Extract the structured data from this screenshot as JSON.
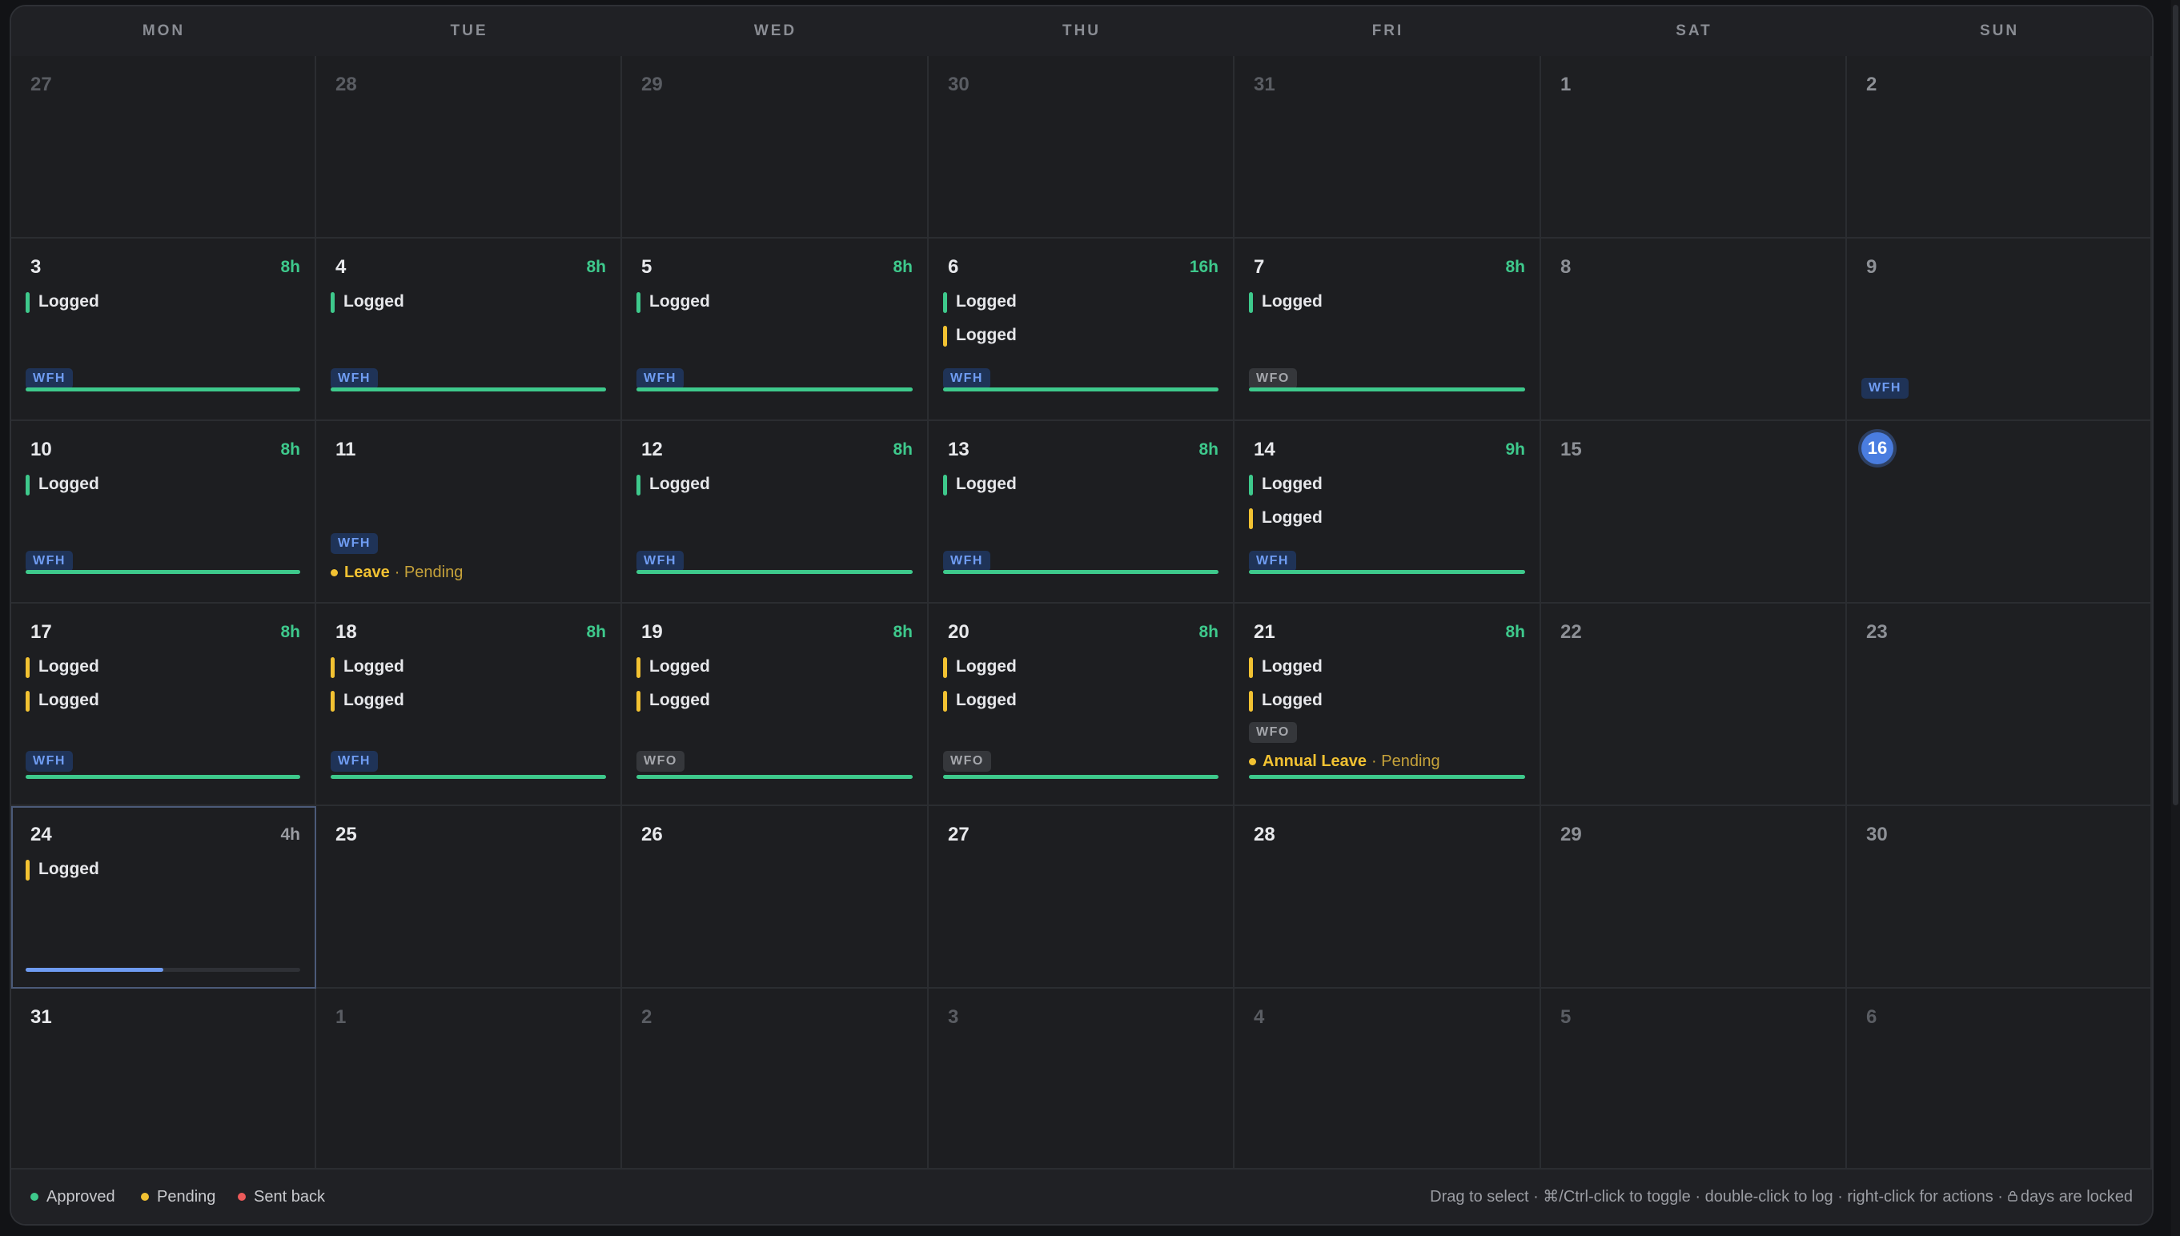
{
  "weekdays": [
    "MON",
    "TUE",
    "WED",
    "THU",
    "FRI",
    "SAT",
    "SUN"
  ],
  "colors": {
    "approved": "#3ec98c",
    "pending": "#f2c232",
    "sent_back": "#ec5a5a",
    "wfh": "#6f9cf2",
    "today": "#4a7de0"
  },
  "weeks": [
    [
      {
        "day": "27",
        "muted": true
      },
      {
        "day": "28",
        "muted": true
      },
      {
        "day": "29",
        "muted": true
      },
      {
        "day": "30",
        "muted": true
      },
      {
        "day": "31",
        "muted": true
      },
      {
        "day": "1",
        "weekend": true
      },
      {
        "day": "2",
        "weekend": true
      }
    ],
    [
      {
        "day": "3",
        "hours": "8h",
        "entries": [
          {
            "label": "Logged",
            "status": "approved"
          }
        ],
        "tag": "WFH",
        "progress": 1,
        "progress_color": "approved"
      },
      {
        "day": "4",
        "hours": "8h",
        "entries": [
          {
            "label": "Logged",
            "status": "approved"
          }
        ],
        "tag": "WFH",
        "progress": 1,
        "progress_color": "approved"
      },
      {
        "day": "5",
        "hours": "8h",
        "entries": [
          {
            "label": "Logged",
            "status": "approved"
          }
        ],
        "tag": "WFH",
        "progress": 1,
        "progress_color": "approved"
      },
      {
        "day": "6",
        "hours": "16h",
        "entries": [
          {
            "label": "Logged",
            "status": "approved"
          },
          {
            "label": "Logged",
            "status": "pending"
          }
        ],
        "tag": "WFH",
        "progress": 1,
        "progress_color": "approved"
      },
      {
        "day": "7",
        "hours": "8h",
        "entries": [
          {
            "label": "Logged",
            "status": "approved"
          }
        ],
        "tag": "WFO",
        "progress": 1,
        "progress_color": "approved"
      },
      {
        "day": "8",
        "weekend": true
      },
      {
        "day": "9",
        "weekend": true,
        "tag": "WFH",
        "tag_pos": "low"
      }
    ],
    [
      {
        "day": "10",
        "hours": "8h",
        "entries": [
          {
            "label": "Logged",
            "status": "approved"
          }
        ],
        "tag": "WFH",
        "progress": 1,
        "progress_color": "approved"
      },
      {
        "day": "11",
        "tag": "WFH",
        "tag_pos": "leave",
        "leave": {
          "type": "Leave",
          "status": "· Pending"
        }
      },
      {
        "day": "12",
        "hours": "8h",
        "entries": [
          {
            "label": "Logged",
            "status": "approved"
          }
        ],
        "tag": "WFH",
        "progress": 1,
        "progress_color": "approved"
      },
      {
        "day": "13",
        "hours": "8h",
        "entries": [
          {
            "label": "Logged",
            "status": "approved"
          }
        ],
        "tag": "WFH",
        "progress": 1,
        "progress_color": "approved"
      },
      {
        "day": "14",
        "hours": "9h",
        "entries": [
          {
            "label": "Logged",
            "status": "approved"
          },
          {
            "label": "Logged",
            "status": "pending"
          }
        ],
        "tag": "WFH",
        "progress": 1,
        "progress_color": "approved"
      },
      {
        "day": "15",
        "weekend": true
      },
      {
        "day": "16",
        "weekend": true,
        "today": true
      }
    ],
    [
      {
        "day": "17",
        "hours": "8h",
        "entries": [
          {
            "label": "Logged",
            "status": "pending"
          },
          {
            "label": "Logged",
            "status": "pending"
          }
        ],
        "tag": "WFH",
        "progress": 1,
        "progress_color": "approved"
      },
      {
        "day": "18",
        "hours": "8h",
        "entries": [
          {
            "label": "Logged",
            "status": "pending"
          },
          {
            "label": "Logged",
            "status": "pending"
          }
        ],
        "tag": "WFH",
        "progress": 1,
        "progress_color": "approved"
      },
      {
        "day": "19",
        "hours": "8h",
        "entries": [
          {
            "label": "Logged",
            "status": "pending"
          },
          {
            "label": "Logged",
            "status": "pending"
          }
        ],
        "tag": "WFO",
        "progress": 1,
        "progress_color": "approved"
      },
      {
        "day": "20",
        "hours": "8h",
        "entries": [
          {
            "label": "Logged",
            "status": "pending"
          },
          {
            "label": "Logged",
            "status": "pending"
          }
        ],
        "tag": "WFO",
        "progress": 1,
        "progress_color": "approved"
      },
      {
        "day": "21",
        "hours": "8h",
        "entries": [
          {
            "label": "Logged",
            "status": "pending"
          },
          {
            "label": "Logged",
            "status": "pending"
          }
        ],
        "tag": "WFO",
        "tag_pos": "leave",
        "leave": {
          "type": "Annual Leave",
          "status": "· Pending"
        },
        "progress": 1,
        "progress_color": "approved"
      },
      {
        "day": "22",
        "weekend": true
      },
      {
        "day": "23",
        "weekend": true
      }
    ],
    [
      {
        "day": "24",
        "hours": "4h",
        "hours_muted": true,
        "selected": true,
        "entries": [
          {
            "label": "Logged",
            "status": "pending"
          }
        ],
        "progress": 0.5,
        "progress_color": "wfh"
      },
      {
        "day": "25"
      },
      {
        "day": "26"
      },
      {
        "day": "27"
      },
      {
        "day": "28"
      },
      {
        "day": "29",
        "weekend": true
      },
      {
        "day": "30",
        "weekend": true
      }
    ],
    [
      {
        "day": "31"
      },
      {
        "day": "1",
        "muted": true
      },
      {
        "day": "2",
        "muted": true
      },
      {
        "day": "3",
        "muted": true
      },
      {
        "day": "4",
        "muted": true
      },
      {
        "day": "5",
        "muted": true
      },
      {
        "day": "6",
        "muted": true
      }
    ]
  ],
  "legend": [
    {
      "label": "Approved",
      "color": "approved"
    },
    {
      "label": "Pending",
      "color": "pending"
    },
    {
      "label": "Sent back",
      "color": "sent_back"
    }
  ],
  "hint": {
    "text": "Drag to select · ⌘/Ctrl-click to toggle · double-click to log · right-click for actions ·",
    "lock_text": "days are locked"
  }
}
